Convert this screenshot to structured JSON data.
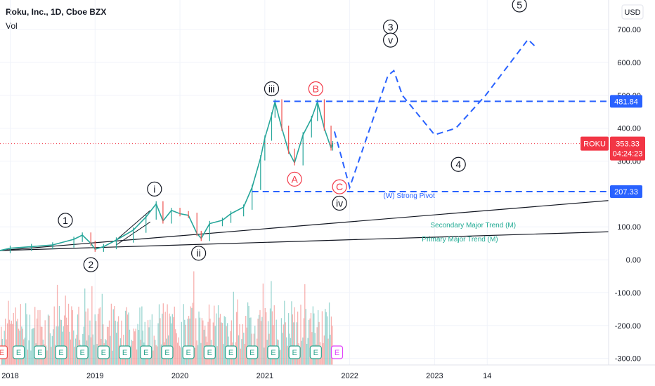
{
  "header": {
    "symbol_line": "Roku, Inc., 1D, Cboe BZX",
    "volume_label": "Vol",
    "currency_button": "USD"
  },
  "colors": {
    "up": "#26a69a",
    "down": "#ef5350",
    "projection": "#2962ff",
    "price_tag": "#f23645",
    "level_tag": "#2962ff",
    "trend_text": "#22ab94",
    "grid": "#f0f3fa",
    "circle_red": "#f23645",
    "earnings_green": "#2ca58d",
    "earnings_red": "#ef5350",
    "earnings_future": "#e040fb"
  },
  "chart_data": {
    "type": "line",
    "title": "Roku, Inc., 1D, Cboe BZX",
    "price_axis": {
      "ticks": [
        "700.00",
        "600.00",
        "500.00",
        "400.00",
        "300.00",
        "200.00",
        "100.00",
        "0.00",
        "-100.00",
        "-200.00",
        "-300.00"
      ],
      "tick_values": [
        700,
        600,
        500,
        400,
        300,
        200,
        100,
        0,
        -100,
        -200,
        -300
      ],
      "ylim": [
        -320,
        790
      ]
    },
    "time_axis": {
      "ticks": [
        "2018",
        "2019",
        "2020",
        "2021",
        "2022",
        "2023",
        "14"
      ],
      "tick_values": [
        2018.0,
        2019.0,
        2020.0,
        2021.0,
        2022.0,
        2023.0,
        2023.62
      ],
      "xlim": [
        2017.88,
        2025.05
      ]
    },
    "grid": true,
    "series": [
      {
        "name": "",
        "points": [
          [
            2017.88,
            28
          ],
          [
            2018.0,
            35
          ],
          [
            2018.25,
            40
          ],
          [
            2018.5,
            45
          ],
          [
            2018.75,
            62
          ],
          [
            2018.85,
            75
          ],
          [
            2018.95,
            50
          ],
          [
            2019.0,
            32
          ],
          [
            2019.1,
            40
          ],
          [
            2019.25,
            60
          ],
          [
            2019.45,
            90
          ],
          [
            2019.6,
            130
          ],
          [
            2019.72,
            170
          ],
          [
            2019.8,
            118
          ],
          [
            2019.9,
            150
          ],
          [
            2020.0,
            140
          ],
          [
            2020.1,
            135
          ],
          [
            2020.2,
            80
          ],
          [
            2020.25,
            65
          ],
          [
            2020.35,
            110
          ],
          [
            2020.5,
            120
          ],
          [
            2020.6,
            140
          ],
          [
            2020.75,
            160
          ],
          [
            2020.85,
            220
          ],
          [
            2020.95,
            310
          ],
          [
            2021.0,
            370
          ],
          [
            2021.08,
            440
          ],
          [
            2021.12,
            480
          ],
          [
            2021.2,
            400
          ],
          [
            2021.28,
            330
          ],
          [
            2021.35,
            295
          ],
          [
            2021.45,
            380
          ],
          [
            2021.55,
            430
          ],
          [
            2021.62,
            480
          ],
          [
            2021.7,
            400
          ],
          [
            2021.78,
            340
          ],
          [
            2021.8,
            353
          ]
        ]
      }
    ],
    "projection_path": [
      [
        2021.82,
        390
      ],
      [
        2022.0,
        220
      ],
      [
        2022.45,
        560
      ],
      [
        2022.52,
        575
      ],
      [
        2022.62,
        500
      ],
      [
        2023.0,
        380
      ],
      [
        2023.25,
        400
      ],
      [
        2023.6,
        500
      ],
      [
        2024.1,
        670
      ],
      [
        2024.2,
        645
      ]
    ],
    "levels": [
      {
        "label": "481.84",
        "value": 481.84,
        "x_start": 2021.1
      },
      {
        "label": "207.33",
        "value": 207.33,
        "x_start": 2020.85
      }
    ],
    "trend_lines": [
      {
        "label": "Secondary Major Trend (M)",
        "from": [
          2017.88,
          28
        ],
        "to": [
          2025.05,
          180
        ]
      },
      {
        "label": "Primary Major Trend (M)",
        "from": [
          2017.88,
          28
        ],
        "to": [
          2025.05,
          85
        ]
      }
    ],
    "wave_channel": [
      [
        2019.25,
        60
      ],
      [
        2019.65,
        150
      ]
    ],
    "annotations": [
      {
        "text": "1",
        "x": 2018.65,
        "y": 120,
        "style": "circle"
      },
      {
        "text": "2",
        "x": 2018.95,
        "y": -15,
        "style": "circle"
      },
      {
        "text": "i",
        "x": 2019.7,
        "y": 215,
        "style": "circle"
      },
      {
        "text": "ii",
        "x": 2020.22,
        "y": 20,
        "style": "circle"
      },
      {
        "text": "iii",
        "x": 2021.08,
        "y": 520,
        "style": "circle"
      },
      {
        "text": "A",
        "x": 2021.35,
        "y": 245,
        "style": "circle-red"
      },
      {
        "text": "B",
        "x": 2021.6,
        "y": 520,
        "style": "circle-red"
      },
      {
        "text": "C",
        "x": 2021.88,
        "y": 222,
        "style": "circle-red"
      },
      {
        "text": "iv",
        "x": 2021.88,
        "y": 172,
        "style": "circle"
      },
      {
        "text": "3",
        "x": 2022.48,
        "y": 708,
        "style": "circle"
      },
      {
        "text": "v",
        "x": 2022.48,
        "y": 668,
        "style": "circle"
      },
      {
        "text": "4",
        "x": 2023.28,
        "y": 290,
        "style": "circle"
      },
      {
        "text": "5",
        "x": 2024.0,
        "y": 775,
        "style": "circle"
      },
      {
        "text": "(W) Strong Pivot",
        "x": 2022.7,
        "y": 188,
        "style": "blue-text"
      }
    ],
    "last_price": {
      "symbol": "ROKU",
      "price": "353.33",
      "value": 353.33,
      "countdown": "04:24:23"
    },
    "earnings": {
      "label": "E",
      "past_x": [
        2017.9,
        2018.1,
        2018.35,
        2018.6,
        2018.85,
        2019.1,
        2019.35,
        2019.6,
        2019.85,
        2020.1,
        2020.35,
        2020.6,
        2020.85,
        2021.1,
        2021.35,
        2021.6
      ],
      "past_red_index": [
        0
      ],
      "future_x": [
        2021.85
      ]
    }
  }
}
